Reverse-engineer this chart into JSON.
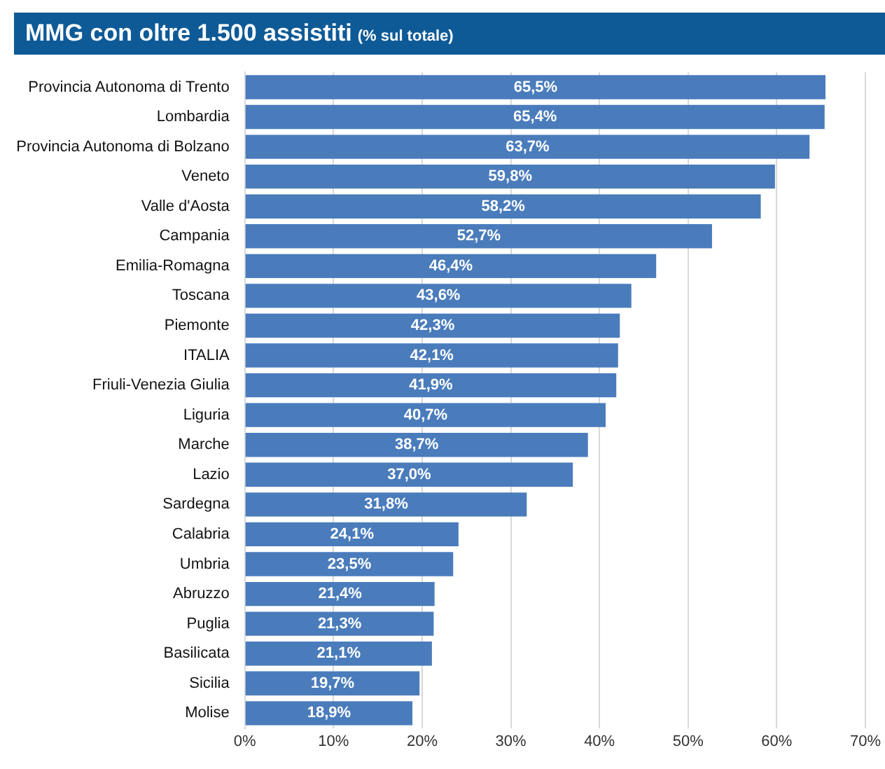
{
  "chart_data": {
    "type": "bar",
    "orientation": "horizontal",
    "title": "MMG con oltre 1.500 assistiti",
    "subtitle": "(% sul totale)",
    "categories": [
      "Provincia Autonoma di Trento",
      "Lombardia",
      "Provincia Autonoma di Bolzano",
      "Veneto",
      "Valle d'Aosta",
      "Campania",
      "Emilia-Romagna",
      "Toscana",
      "Piemonte",
      "ITALIA",
      "Friuli-Venezia Giulia",
      "Liguria",
      "Marche",
      "Lazio",
      "Sardegna",
      "Calabria",
      "Umbria",
      "Abruzzo",
      "Puglia",
      "Basilicata",
      "Sicilia",
      "Molise"
    ],
    "values": [
      65.5,
      65.4,
      63.7,
      59.8,
      58.2,
      52.7,
      46.4,
      43.6,
      42.3,
      42.1,
      41.9,
      40.7,
      38.7,
      37.0,
      31.8,
      24.1,
      23.5,
      21.4,
      21.3,
      21.1,
      19.7,
      18.9
    ],
    "value_labels": [
      "65,5%",
      "65,4%",
      "63,7%",
      "59,8%",
      "58,2%",
      "52,7%",
      "46,4%",
      "43,6%",
      "42,3%",
      "42,1%",
      "41,9%",
      "40,7%",
      "38,7%",
      "37,0%",
      "31,8%",
      "24,1%",
      "23,5%",
      "21,4%",
      "21,3%",
      "21,1%",
      "19,7%",
      "18,9%"
    ],
    "color": "#4a7cbc",
    "xlim": [
      0,
      70
    ],
    "xticks": [
      {
        "value": 0,
        "label": "0%"
      },
      {
        "value": 10,
        "label": "10%"
      },
      {
        "value": 20,
        "label": "20%"
      },
      {
        "value": 30,
        "label": "30%"
      },
      {
        "value": 40,
        "label": "40%"
      },
      {
        "value": 50,
        "label": "50%"
      },
      {
        "value": 60,
        "label": "60%"
      },
      {
        "value": 70,
        "label": "70%"
      }
    ],
    "grid": "x",
    "legend": false
  }
}
